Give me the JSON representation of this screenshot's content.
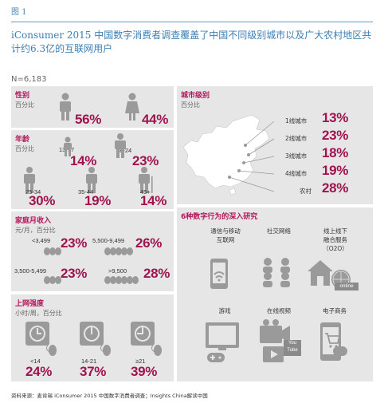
{
  "figure_label": "图 1",
  "title": "iConsumer 2015 中国数字消费者调查覆盖了中国不同级别城市以及广大农村地区共计约6.3亿的互联网用户",
  "sample": "N=6,183",
  "gender": {
    "title": "性别",
    "unit": "百分比",
    "male_value": "56%",
    "female_value": "44%"
  },
  "age": {
    "title": "年龄",
    "unit": "百分比",
    "groups": [
      {
        "label": "13-17",
        "value": "14%"
      },
      {
        "label": "18-24",
        "value": "23%"
      },
      {
        "label": "25-34",
        "value": "30%"
      },
      {
        "label": "35-44",
        "value": "19%"
      },
      {
        "label": "45+",
        "value": "14%"
      }
    ]
  },
  "income": {
    "title": "家庭月收入",
    "unit": "元/月，百分比",
    "groups": [
      {
        "label": "<3,499",
        "value": "23%"
      },
      {
        "label": "5,500-9,499",
        "value": "26%"
      },
      {
        "label": "3,500-5,499",
        "value": "23%"
      },
      {
        "label": ">9,500",
        "value": "28%"
      }
    ]
  },
  "internet": {
    "title": "上网强度",
    "unit": "小时/周，百分比",
    "groups": [
      {
        "label": "<14",
        "value": "24%"
      },
      {
        "label": "14-21",
        "value": "37%"
      },
      {
        "label": "≥21",
        "value": "39%"
      }
    ]
  },
  "city": {
    "title": "城市级别",
    "unit": "百分比",
    "tiers": [
      {
        "label": "1线城市",
        "value": "13%"
      },
      {
        "label": "2线城市",
        "value": "23%"
      },
      {
        "label": "3线城市",
        "value": "18%"
      },
      {
        "label": "4线城市",
        "value": "19%"
      },
      {
        "label": "农村",
        "value": "28%"
      }
    ]
  },
  "behaviors": {
    "title": "6种数字行为的深入研究",
    "items": [
      {
        "label": "通信与移动\n互联网",
        "icon": "mobile-wifi-icon"
      },
      {
        "label": "社交网络",
        "icon": "social-network-icon"
      },
      {
        "label": "线上线下\n融合服务\n（O2O）",
        "icon": "o2o-house-icon",
        "badge": "online"
      },
      {
        "label": "游戏",
        "icon": "game-controller-icon"
      },
      {
        "label": "在线视频",
        "icon": "video-icon",
        "badge": "You Tube"
      },
      {
        "label": "电子商务",
        "icon": "ecommerce-phone-icon"
      }
    ]
  },
  "footer": "资料来源：麦肯锡 iConsumer 2015 中国数字消费者调查；Insights China解读中国",
  "colors": {
    "accent": "#a0134f",
    "title": "#3b7fb3",
    "panel": "#e6e6e6",
    "icon": "#9a9a9a"
  }
}
